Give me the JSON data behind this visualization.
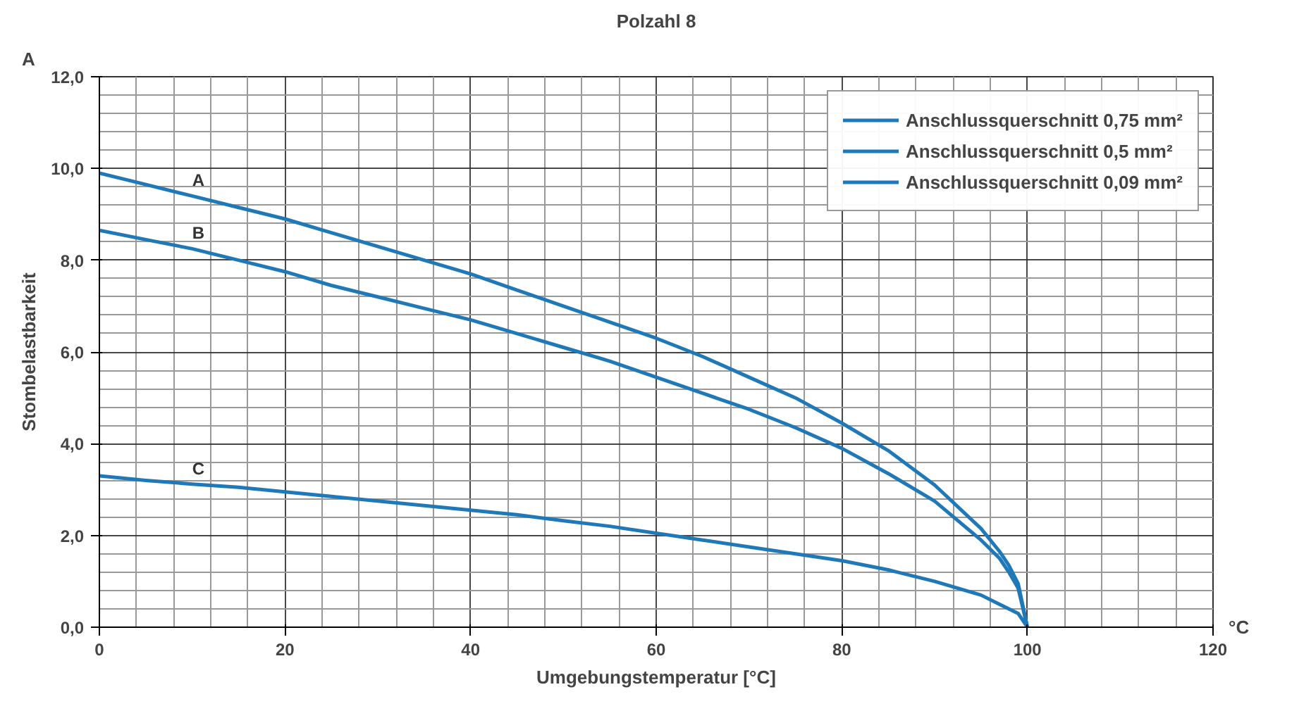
{
  "chart_data": {
    "type": "line",
    "title": "Polzahl 8",
    "xlabel": "Umgebungstemperatur [°C]",
    "ylabel": "Stombelastbarkeit",
    "x": [
      0,
      5,
      10,
      15,
      20,
      25,
      30,
      35,
      40,
      45,
      50,
      55,
      60,
      65,
      70,
      75,
      80,
      85,
      90,
      95,
      97,
      98,
      99,
      100
    ],
    "series": [
      {
        "name": "Anschlussquerschnitt 0,75 mm²",
        "color": "#1f78b8",
        "values": [
          9.9,
          9.65,
          9.4,
          9.15,
          8.9,
          8.6,
          8.3,
          8.0,
          7.7,
          7.35,
          7.0,
          6.65,
          6.3,
          5.9,
          5.45,
          5.0,
          4.45,
          3.85,
          3.1,
          2.15,
          1.65,
          1.35,
          0.95,
          0
        ]
      },
      {
        "name": "Anschlussquerschnitt 0,5 mm²",
        "color": "#1f78b8",
        "values": [
          8.65,
          8.45,
          8.25,
          8.0,
          7.75,
          7.45,
          7.2,
          6.95,
          6.7,
          6.4,
          6.1,
          5.8,
          5.45,
          5.1,
          4.75,
          4.35,
          3.9,
          3.35,
          2.75,
          1.9,
          1.5,
          1.2,
          0.85,
          0
        ]
      },
      {
        "name": "Anschlussquerschnitt 0,09 mm²",
        "color": "#1f78b8",
        "values": [
          3.3,
          3.2,
          3.12,
          3.05,
          2.95,
          2.85,
          2.75,
          2.65,
          2.55,
          2.45,
          2.32,
          2.2,
          2.05,
          1.9,
          1.75,
          1.6,
          1.45,
          1.25,
          1.0,
          0.7,
          0.5,
          0.4,
          0.3,
          0
        ]
      }
    ],
    "xlim": [
      0,
      120
    ],
    "xticks": [
      0,
      20,
      40,
      60,
      80,
      100,
      120
    ],
    "ylim": [
      0,
      12
    ],
    "yticks": [
      {
        "value": 0,
        "label": "0,0"
      },
      {
        "value": 2,
        "label": "2,0"
      },
      {
        "value": 4,
        "label": "4,0"
      },
      {
        "value": 6,
        "label": "6,0"
      },
      {
        "value": 8,
        "label": "8,0"
      },
      {
        "value": 10,
        "label": "10,0"
      },
      {
        "value": 12,
        "label": "12,0"
      }
    ],
    "annotations": [
      "A",
      "°C",
      "A",
      "B",
      "C"
    ],
    "grid": true,
    "legend": "top right",
    "line_style": "solid",
    "marker": "none"
  }
}
